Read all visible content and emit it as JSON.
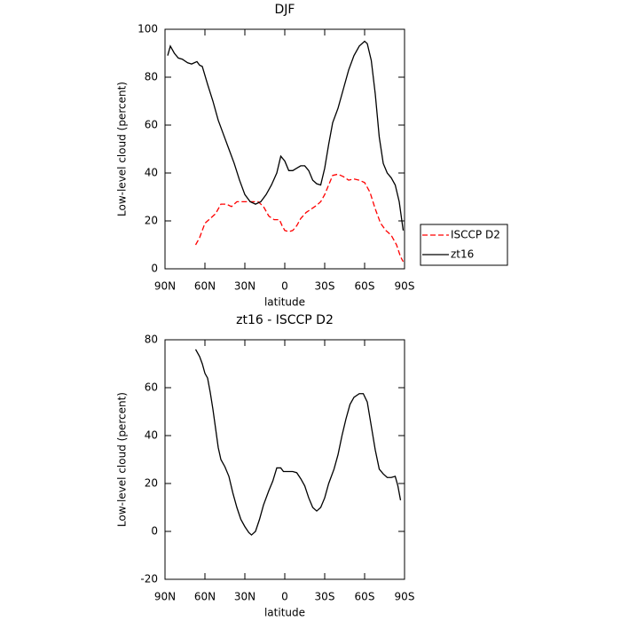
{
  "chart_data": [
    {
      "type": "line",
      "title": "DJF",
      "xlabel": "latitude",
      "ylabel": "Low-level cloud (percent)",
      "xlim": [
        90,
        -90
      ],
      "xticks": [
        {
          "value": 90,
          "label": "90N"
        },
        {
          "value": 60,
          "label": "60N"
        },
        {
          "value": 30,
          "label": "30N"
        },
        0,
        {
          "value": -30,
          "label": "30S"
        },
        {
          "value": -60,
          "label": "60S"
        },
        {
          "value": -90,
          "label": "90S"
        }
      ],
      "ylim": [
        0,
        100
      ],
      "yticks": [
        0,
        20,
        40,
        60,
        80,
        100
      ],
      "legend": "right",
      "series": [
        {
          "name": "ISCCP D2",
          "color": "#ff0000",
          "dashed": true,
          "x": [
            67,
            64,
            60,
            56,
            52,
            48,
            44,
            40,
            36,
            32,
            28,
            24,
            20,
            16,
            12,
            8,
            4,
            2,
            0,
            -3,
            -6,
            -9,
            -12,
            -16,
            -20,
            -24,
            -27,
            -30,
            -33,
            -36,
            -40,
            -44,
            -48,
            -52,
            -56,
            -60,
            -64,
            -68,
            -72,
            -76,
            -80,
            -84,
            -87,
            -89
          ],
          "values": [
            10,
            13,
            19,
            21,
            23,
            27,
            27,
            26,
            28,
            28,
            28,
            28,
            28,
            26,
            22,
            20.5,
            20.5,
            18,
            16,
            15.5,
            16,
            18,
            21,
            23.5,
            25,
            26.5,
            28,
            31,
            35,
            39,
            39.5,
            38.5,
            37,
            37.5,
            37,
            36,
            32,
            25,
            19,
            16,
            14,
            10,
            5,
            3
          ]
        },
        {
          "name": "zt16",
          "color": "#000000",
          "dashed": false,
          "x": [
            88,
            86,
            83,
            80,
            77,
            73,
            70,
            66,
            64,
            62,
            58,
            54,
            50,
            46,
            42,
            38,
            34,
            30,
            26,
            22,
            18,
            14,
            10,
            6,
            3,
            0,
            -3,
            -6,
            -9,
            -12,
            -15,
            -18,
            -21,
            -24,
            -27,
            -30,
            -33,
            -36,
            -40,
            -44,
            -48,
            -52,
            -56,
            -60,
            -62,
            -65,
            -68,
            -71,
            -74,
            -77,
            -80,
            -83,
            -86,
            -89
          ],
          "values": [
            89,
            93,
            90,
            88,
            87.5,
            86,
            85.5,
            86.5,
            85,
            84.5,
            77,
            70,
            62,
            56,
            50,
            44,
            37,
            31,
            28,
            27,
            28,
            31,
            35,
            40,
            47,
            45,
            41,
            41,
            42,
            43,
            43,
            41,
            37,
            35.5,
            35,
            42,
            52,
            61,
            67,
            75,
            83,
            89,
            93,
            95,
            94,
            87,
            73,
            55,
            44,
            40,
            38,
            35,
            28,
            16
          ]
        }
      ]
    },
    {
      "type": "line",
      "title": "zt16 - ISCCP D2",
      "xlabel": "latitude",
      "ylabel": "Low-level cloud (percent)",
      "xlim": [
        90,
        -90
      ],
      "xticks": [
        {
          "value": 90,
          "label": "90N"
        },
        {
          "value": 60,
          "label": "60N"
        },
        {
          "value": 30,
          "label": "30N"
        },
        0,
        {
          "value": -30,
          "label": "30S"
        },
        {
          "value": -60,
          "label": "60S"
        },
        {
          "value": -90,
          "label": "90S"
        }
      ],
      "ylim": [
        -20,
        80
      ],
      "yticks": [
        -20,
        0,
        20,
        40,
        60,
        80
      ],
      "series": [
        {
          "color": "#000000",
          "dashed": false,
          "x": [
            67,
            64,
            62,
            60,
            58,
            56,
            54,
            52,
            50,
            48,
            45,
            42,
            39,
            36,
            33,
            30,
            27,
            25,
            22,
            19,
            16,
            12,
            9,
            6,
            3,
            1,
            -3,
            -6,
            -9,
            -12,
            -15,
            -18,
            -21,
            -24,
            -27,
            -30,
            -33,
            -37,
            -40,
            -43,
            -46,
            -49,
            -52,
            -56,
            -59,
            -62,
            -65,
            -68,
            -71,
            -74,
            -77,
            -80,
            -83,
            -85,
            -87
          ],
          "values": [
            76,
            73,
            70,
            66,
            64,
            58,
            51,
            43,
            35,
            30,
            27,
            23,
            16,
            10,
            5,
            2,
            -0.5,
            -1.5,
            0,
            5,
            11,
            17,
            21,
            26.5,
            26.5,
            25,
            25,
            25,
            24.5,
            22,
            19,
            14,
            10,
            8.5,
            10,
            14,
            20,
            26,
            32,
            40,
            47,
            53,
            56,
            57.5,
            57.5,
            54,
            44,
            34,
            26,
            24,
            22.5,
            22.5,
            23,
            19,
            13
          ]
        }
      ]
    }
  ]
}
